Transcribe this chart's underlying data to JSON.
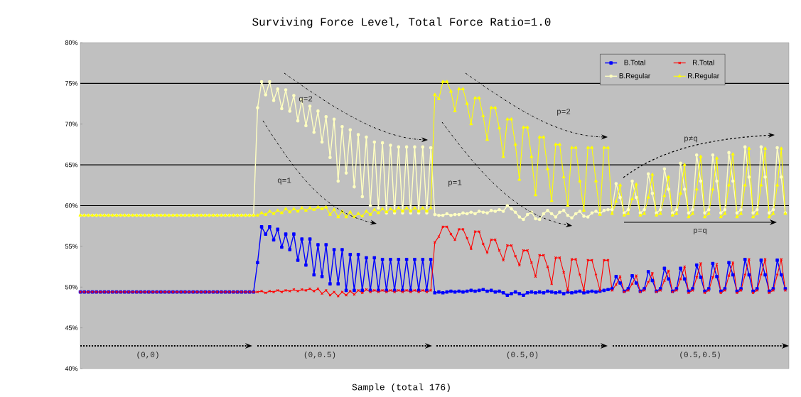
{
  "chart_data": {
    "type": "line",
    "title": "Surviving Force Level, Total Force Ratio=1.0",
    "xlabel": "Sample (total 176)",
    "categories": [
      null,
      null,
      null,
      null,
      null,
      null,
      null,
      null,
      null,
      null,
      null,
      null,
      null,
      null,
      null,
      null,
      null,
      null,
      null,
      null,
      null,
      null,
      null,
      null,
      null,
      null,
      null,
      null,
      null,
      null,
      null,
      null,
      null,
      null,
      null,
      null,
      null,
      null,
      null,
      null,
      null,
      null,
      null,
      null,
      null,
      null,
      null,
      null,
      null,
      null,
      null,
      null,
      null,
      null,
      null,
      null,
      null,
      null,
      null,
      null,
      null,
      null,
      null,
      null,
      null,
      null,
      null,
      null,
      null,
      null,
      null,
      null,
      null,
      null,
      null,
      null,
      null,
      null,
      null,
      null,
      null,
      null,
      null,
      null,
      null,
      null,
      null,
      null,
      null,
      null,
      null,
      null,
      null,
      null,
      null,
      null,
      null,
      null,
      null,
      null,
      null,
      null,
      null,
      null,
      null,
      null,
      null,
      null,
      null,
      null,
      null,
      null,
      null,
      null,
      null,
      null,
      null,
      null,
      null,
      null,
      null,
      null,
      null,
      null,
      null,
      null,
      null,
      null,
      null,
      null,
      null,
      null,
      null,
      null,
      null,
      null,
      null,
      null,
      null,
      null,
      null,
      null,
      null,
      null,
      null,
      null,
      null,
      null,
      null,
      null,
      null,
      null,
      null,
      null,
      null,
      null,
      null,
      null,
      null,
      null,
      null,
      null,
      null,
      null,
      null,
      null,
      null,
      null,
      null,
      null,
      null,
      null,
      null,
      null,
      null,
      null
    ],
    "ylim": [
      40,
      80
    ],
    "yticks": [
      {
        "value": 40,
        "label": "40%"
      },
      {
        "value": 45,
        "label": "45%"
      },
      {
        "value": 50,
        "label": "50%"
      },
      {
        "value": 55,
        "label": "55%"
      },
      {
        "value": 60,
        "label": "60%"
      },
      {
        "value": 65,
        "label": "65%"
      },
      {
        "value": 70,
        "label": "70%"
      },
      {
        "value": 75,
        "label": "75%"
      },
      {
        "value": 80,
        "label": "80%"
      }
    ],
    "legend": "top right",
    "ref_lines": [
      {
        "axis": "y",
        "value": 60,
        "color": "#000000"
      },
      {
        "axis": "y",
        "value": 65,
        "color": "#000000"
      },
      {
        "axis": "y",
        "value": 75,
        "color": "#000000"
      }
    ],
    "annotations": [
      "q=2",
      "q=1",
      "p=2",
      "p=1",
      "p≠q",
      "p=q",
      "(0,0)",
      "(0,0.5)",
      "(0.5,0)",
      "(0.5,0.5)"
    ],
    "series": [
      {
        "name": "B.Total",
        "color": "#0000ff",
        "marker": "square",
        "values": [
          49.4,
          49.4,
          49.4,
          49.4,
          49.4,
          49.4,
          49.4,
          49.4,
          49.4,
          49.4,
          49.4,
          49.4,
          49.4,
          49.4,
          49.4,
          49.4,
          49.4,
          49.4,
          49.4,
          49.4,
          49.4,
          49.4,
          49.4,
          49.4,
          49.4,
          49.4,
          49.4,
          49.4,
          49.4,
          49.4,
          49.4,
          49.4,
          49.4,
          49.4,
          49.4,
          49.4,
          49.4,
          49.4,
          49.4,
          49.4,
          49.4,
          49.4,
          49.4,
          49.4,
          53.0,
          57.4,
          56.5,
          57.4,
          55.8,
          57.1,
          54.9,
          56.5,
          54.6,
          56.5,
          53.3,
          55.9,
          52.7,
          55.9,
          51.5,
          55.2,
          51.3,
          55.2,
          50.4,
          54.6,
          50.4,
          54.6,
          49.6,
          54.0,
          49.6,
          54.0,
          49.6,
          53.6,
          49.6,
          53.6,
          49.6,
          53.4,
          49.6,
          53.4,
          49.6,
          53.4,
          49.6,
          53.4,
          49.6,
          53.4,
          49.6,
          53.4,
          49.6,
          53.4,
          49.3,
          49.4,
          49.3,
          49.4,
          49.5,
          49.4,
          49.5,
          49.4,
          49.5,
          49.6,
          49.5,
          49.6,
          49.7,
          49.5,
          49.6,
          49.4,
          49.5,
          49.3,
          49.0,
          49.2,
          49.4,
          49.2,
          49.0,
          49.3,
          49.4,
          49.3,
          49.4,
          49.3,
          49.5,
          49.4,
          49.3,
          49.4,
          49.2,
          49.4,
          49.3,
          49.4,
          49.5,
          49.3,
          49.4,
          49.5,
          49.4,
          49.5,
          49.6,
          49.7,
          49.8,
          51.3,
          50.5,
          49.5,
          49.8,
          51.4,
          50.5,
          49.5,
          49.8,
          51.9,
          50.8,
          49.5,
          49.8,
          52.3,
          51.0,
          49.5,
          49.8,
          52.3,
          51.0,
          49.5,
          49.8,
          52.7,
          51.2,
          49.5,
          49.8,
          52.9,
          51.3,
          49.5,
          49.8,
          53.0,
          51.5,
          49.5,
          49.8,
          53.4,
          51.5,
          49.5,
          49.8,
          53.3,
          51.5,
          49.5,
          49.8,
          53.3,
          51.5,
          49.8
        ]
      },
      {
        "name": "R.Total",
        "color": "#ff0000",
        "marker": "cross",
        "values": [
          49.4,
          49.4,
          49.4,
          49.4,
          49.4,
          49.4,
          49.4,
          49.4,
          49.4,
          49.4,
          49.4,
          49.4,
          49.4,
          49.4,
          49.4,
          49.4,
          49.4,
          49.4,
          49.4,
          49.4,
          49.4,
          49.4,
          49.4,
          49.4,
          49.4,
          49.4,
          49.4,
          49.4,
          49.4,
          49.4,
          49.4,
          49.4,
          49.4,
          49.4,
          49.4,
          49.4,
          49.4,
          49.4,
          49.4,
          49.4,
          49.4,
          49.4,
          49.4,
          49.4,
          49.4,
          49.5,
          49.3,
          49.5,
          49.4,
          49.6,
          49.4,
          49.6,
          49.5,
          49.7,
          49.5,
          49.7,
          49.6,
          49.8,
          49.5,
          49.8,
          49.2,
          49.6,
          49.0,
          49.4,
          48.9,
          49.4,
          49.0,
          49.5,
          49.1,
          49.6,
          49.3,
          49.7,
          49.4,
          49.6,
          49.4,
          49.6,
          49.4,
          49.6,
          49.4,
          49.6,
          49.4,
          49.6,
          49.4,
          49.6,
          49.4,
          49.6,
          49.4,
          49.6,
          55.5,
          56.2,
          57.4,
          57.4,
          56.5,
          55.8,
          57.1,
          57.1,
          56.0,
          54.7,
          56.8,
          56.8,
          55.3,
          54.2,
          55.8,
          55.8,
          54.5,
          53.3,
          55.1,
          55.1,
          53.8,
          52.7,
          54.5,
          54.5,
          53.0,
          51.3,
          53.9,
          53.9,
          52.5,
          50.4,
          53.6,
          53.6,
          51.8,
          49.6,
          53.4,
          53.4,
          51.5,
          49.6,
          53.3,
          53.3,
          51.5,
          49.6,
          53.3,
          53.3,
          49.6,
          50.3,
          51.3,
          49.4,
          49.6,
          50.4,
          51.4,
          49.4,
          49.6,
          50.6,
          51.7,
          49.4,
          49.6,
          50.8,
          52.0,
          49.4,
          49.6,
          51.0,
          52.5,
          49.3,
          49.6,
          51.2,
          52.9,
          49.3,
          49.6,
          51.2,
          52.8,
          49.3,
          49.6,
          51.4,
          53.0,
          49.3,
          49.6,
          51.5,
          53.4,
          49.3,
          49.6,
          51.5,
          53.4,
          49.3,
          49.6,
          51.5,
          53.4,
          49.6
        ]
      },
      {
        "name": "B.Regular",
        "color": "#ffffc0",
        "marker": "circle",
        "values": [
          58.8,
          58.8,
          58.8,
          58.8,
          58.8,
          58.8,
          58.8,
          58.8,
          58.8,
          58.8,
          58.8,
          58.8,
          58.8,
          58.8,
          58.8,
          58.8,
          58.8,
          58.8,
          58.8,
          58.8,
          58.8,
          58.8,
          58.8,
          58.8,
          58.8,
          58.8,
          58.8,
          58.8,
          58.8,
          58.8,
          58.8,
          58.8,
          58.8,
          58.8,
          58.8,
          58.8,
          58.8,
          58.8,
          58.8,
          58.8,
          58.8,
          58.8,
          58.8,
          58.8,
          72.0,
          75.2,
          73.6,
          75.2,
          72.9,
          74.3,
          71.9,
          74.2,
          71.6,
          73.5,
          70.4,
          73.0,
          69.8,
          72.2,
          69.0,
          71.6,
          67.8,
          70.9,
          65.9,
          70.6,
          63.0,
          69.7,
          64.0,
          69.3,
          62.3,
          68.7,
          61.1,
          68.4,
          60.0,
          67.8,
          59.7,
          67.7,
          59.1,
          67.4,
          59.1,
          67.2,
          59.1,
          67.2,
          59.1,
          67.2,
          59.1,
          67.2,
          59.1,
          67.1,
          58.9,
          58.8,
          58.8,
          59.0,
          58.8,
          58.9,
          58.9,
          59.1,
          59.0,
          59.2,
          59.0,
          59.3,
          59.2,
          59.1,
          59.4,
          59.3,
          59.5,
          59.3,
          60.0,
          59.6,
          59.2,
          58.6,
          58.3,
          58.9,
          59.2,
          58.4,
          58.3,
          59.0,
          59.4,
          59.0,
          58.6,
          59.2,
          59.4,
          58.8,
          58.5,
          59.0,
          59.3,
          58.7,
          58.6,
          59.1,
          59.3,
          59.0,
          59.4,
          59.5,
          59.5,
          62.7,
          61.0,
          59.1,
          59.5,
          63.0,
          61.0,
          59.1,
          59.5,
          63.9,
          61.5,
          59.1,
          59.5,
          64.5,
          62.0,
          59.1,
          59.5,
          65.2,
          62.0,
          59.1,
          59.5,
          66.2,
          63.0,
          59.1,
          59.5,
          66.2,
          63.0,
          59.1,
          59.5,
          66.5,
          63.0,
          59.1,
          59.5,
          67.2,
          63.5,
          59.1,
          59.5,
          67.2,
          63.5,
          59.1,
          59.5,
          67.1,
          63.5,
          59.1
        ]
      },
      {
        "name": "R.Regular",
        "color": "#ffff00",
        "marker": "triangle",
        "values": [
          58.8,
          58.8,
          58.8,
          58.8,
          58.8,
          58.8,
          58.8,
          58.8,
          58.8,
          58.8,
          58.8,
          58.8,
          58.8,
          58.8,
          58.8,
          58.8,
          58.8,
          58.8,
          58.8,
          58.8,
          58.8,
          58.8,
          58.8,
          58.8,
          58.8,
          58.8,
          58.8,
          58.8,
          58.8,
          58.8,
          58.8,
          58.8,
          58.8,
          58.8,
          58.8,
          58.8,
          58.8,
          58.8,
          58.8,
          58.8,
          58.8,
          58.8,
          58.8,
          58.8,
          58.8,
          59.1,
          58.9,
          59.3,
          59.0,
          59.4,
          59.1,
          59.6,
          59.2,
          59.6,
          59.3,
          59.7,
          59.4,
          59.7,
          59.5,
          59.8,
          59.6,
          59.8,
          58.9,
          59.5,
          58.6,
          59.3,
          58.6,
          59.2,
          58.6,
          59.0,
          58.7,
          59.3,
          58.9,
          59.5,
          59.1,
          59.6,
          59.2,
          59.6,
          59.3,
          59.7,
          59.3,
          59.7,
          59.3,
          59.7,
          59.3,
          59.7,
          59.3,
          59.7,
          73.6,
          73.1,
          75.2,
          75.2,
          74.0,
          71.6,
          74.3,
          74.3,
          72.5,
          70.0,
          73.2,
          73.2,
          71.0,
          68.1,
          72.0,
          72.0,
          69.5,
          66.0,
          70.6,
          70.6,
          67.5,
          63.2,
          69.6,
          69.6,
          66.0,
          61.3,
          68.4,
          68.4,
          64.5,
          60.6,
          67.5,
          67.5,
          63.5,
          60.0,
          67.1,
          67.1,
          63.0,
          59.4,
          67.1,
          67.1,
          63.0,
          58.9,
          67.1,
          67.1,
          59.0,
          60.5,
          62.5,
          58.8,
          59.0,
          60.8,
          62.6,
          58.8,
          59.0,
          61.0,
          63.8,
          58.8,
          59.0,
          61.2,
          63.5,
          58.8,
          59.0,
          61.5,
          65.0,
          58.6,
          59.0,
          62.0,
          66.0,
          58.6,
          59.0,
          62.0,
          65.8,
          58.6,
          59.0,
          62.5,
          66.3,
          58.6,
          59.0,
          62.5,
          67.0,
          58.6,
          59.0,
          62.5,
          67.0,
          58.6,
          59.0,
          62.5,
          67.0,
          59.0
        ]
      }
    ]
  }
}
